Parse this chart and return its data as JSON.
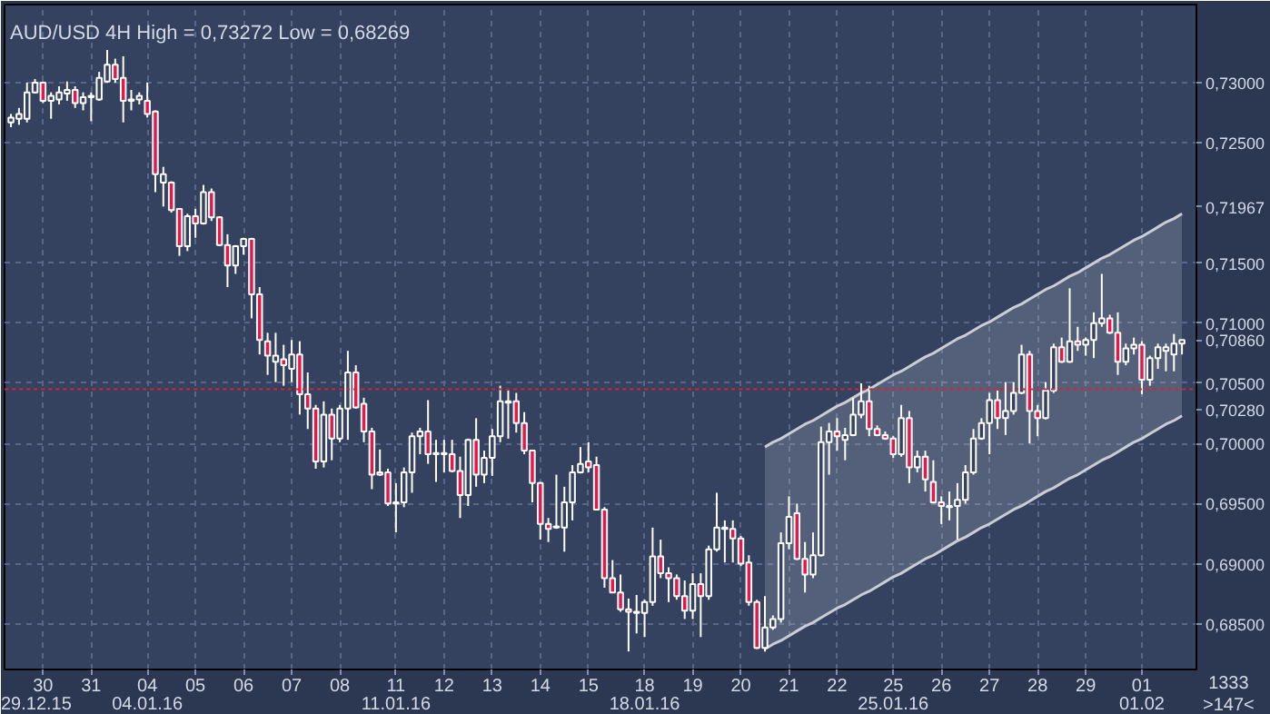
{
  "chart_data": {
    "type": "candlestick",
    "title": "AUD/USD 4H High = 0,73272 Low = 0,68269",
    "categories": [
      null,
      null,
      null,
      null,
      "30",
      null,
      null,
      null,
      null,
      null,
      "31",
      null,
      null,
      null,
      null,
      null,
      null,
      "04",
      null,
      null,
      null,
      null,
      null,
      "05",
      null,
      null,
      null,
      null,
      null,
      "06",
      null,
      null,
      null,
      null,
      null,
      "07",
      null,
      null,
      null,
      null,
      null,
      "08",
      null,
      null,
      null,
      null,
      null,
      null,
      "11",
      null,
      null,
      null,
      null,
      null,
      "12",
      null,
      null,
      null,
      null,
      null,
      "13",
      null,
      null,
      null,
      null,
      null,
      "14",
      null,
      null,
      null,
      null,
      null,
      "15",
      null,
      null,
      null,
      null,
      null,
      null,
      "18",
      null,
      null,
      null,
      null,
      null,
      "19",
      null,
      null,
      null,
      null,
      null,
      "20",
      null,
      null,
      null,
      null,
      null,
      "21",
      null,
      null,
      null,
      null,
      null,
      "22",
      null,
      null,
      null,
      null,
      null,
      null,
      "25",
      null,
      null,
      null,
      null,
      null,
      "26",
      null,
      null,
      null,
      null,
      null,
      "27",
      null,
      null,
      null,
      null,
      null,
      "28",
      null,
      null,
      null,
      null,
      null,
      "29",
      null,
      null,
      null,
      null,
      null,
      null,
      "01",
      null,
      null,
      null,
      null,
      null
    ],
    "ohlc": [
      [
        0.7267,
        0.7274,
        0.7263,
        0.7271
      ],
      [
        0.727,
        0.7279,
        0.7265,
        0.7274
      ],
      [
        0.727,
        0.73,
        0.7267,
        0.7292
      ],
      [
        0.7292,
        0.7303,
        0.7291,
        0.73
      ],
      [
        0.73,
        0.7301,
        0.7283,
        0.7285
      ],
      [
        0.7285,
        0.7292,
        0.727,
        0.7289
      ],
      [
        0.7286,
        0.7297,
        0.7282,
        0.7292
      ],
      [
        0.7291,
        0.7301,
        0.7285,
        0.7294
      ],
      [
        0.7294,
        0.7297,
        0.7279,
        0.7283
      ],
      [
        0.7283,
        0.7292,
        0.7277,
        0.7288
      ],
      [
        0.7288,
        0.7292,
        0.7268,
        0.7289
      ],
      [
        0.7286,
        0.7309,
        0.7285,
        0.7304
      ],
      [
        0.7301,
        0.73272,
        0.73,
        0.7315
      ],
      [
        0.7315,
        0.732,
        0.73,
        0.7303
      ],
      [
        0.7304,
        0.7322,
        0.7267,
        0.7285
      ],
      [
        0.7285,
        0.7294,
        0.7277,
        0.7286
      ],
      [
        0.7286,
        0.7292,
        0.7282,
        0.7289
      ],
      [
        0.7285,
        0.73,
        0.7271,
        0.7274
      ],
      [
        0.7276,
        0.7277,
        0.7209,
        0.7224
      ],
      [
        0.7217,
        0.723,
        0.7197,
        0.7224
      ],
      [
        0.7217,
        0.7218,
        0.7192,
        0.7194
      ],
      [
        0.7195,
        0.7195,
        0.7156,
        0.7164
      ],
      [
        0.7164,
        0.7191,
        0.716,
        0.7189
      ],
      [
        0.7189,
        0.7195,
        0.7171,
        0.7183
      ],
      [
        0.7183,
        0.7215,
        0.7182,
        0.7209
      ],
      [
        0.7209,
        0.7212,
        0.7185,
        0.7188
      ],
      [
        0.7188,
        0.7189,
        0.7164,
        0.7165
      ],
      [
        0.7165,
        0.7174,
        0.713,
        0.7148
      ],
      [
        0.7148,
        0.7165,
        0.7141,
        0.7164
      ],
      [
        0.7164,
        0.7171,
        0.7157,
        0.717
      ],
      [
        0.717,
        0.7171,
        0.7104,
        0.7124
      ],
      [
        0.7124,
        0.713,
        0.7074,
        0.7086
      ],
      [
        0.7085,
        0.7092,
        0.7057,
        0.7073
      ],
      [
        0.7068,
        0.7092,
        0.7051,
        0.7073
      ],
      [
        0.707,
        0.7082,
        0.7048,
        0.7065
      ],
      [
        0.7062,
        0.7086,
        0.7051,
        0.7074
      ],
      [
        0.7074,
        0.7085,
        0.7024,
        0.7041
      ],
      [
        0.7041,
        0.7059,
        0.7012,
        0.7029
      ],
      [
        0.7029,
        0.7032,
        0.6979,
        0.6985
      ],
      [
        0.6985,
        0.7035,
        0.698,
        0.7024
      ],
      [
        0.7024,
        0.7029,
        0.6986,
        0.7004
      ],
      [
        0.7004,
        0.7032,
        0.7001,
        0.7029
      ],
      [
        0.7029,
        0.7077,
        0.7003,
        0.7059
      ],
      [
        0.7059,
        0.7065,
        0.7029,
        0.703
      ],
      [
        0.7033,
        0.7038,
        0.7001,
        0.701
      ],
      [
        0.701,
        0.7013,
        0.6962,
        0.6974
      ],
      [
        0.6976,
        0.6995,
        0.6973,
        0.6974
      ],
      [
        0.6976,
        0.6979,
        0.6948,
        0.695
      ],
      [
        0.695,
        0.6967,
        0.6926,
        0.6951
      ],
      [
        0.6951,
        0.698,
        0.6947,
        0.6976
      ],
      [
        0.6976,
        0.7009,
        0.6959,
        0.7006
      ],
      [
        0.7006,
        0.7013,
        0.6991,
        0.701
      ],
      [
        0.701,
        0.7036,
        0.6983,
        0.6991
      ],
      [
        0.6991,
        0.7003,
        0.6968,
        0.6992
      ],
      [
        0.6991,
        0.7003,
        0.6976,
        0.6992
      ],
      [
        0.6991,
        0.7003,
        0.6976,
        0.6977
      ],
      [
        0.6977,
        0.6989,
        0.6938,
        0.6957
      ],
      [
        0.6957,
        0.7004,
        0.6948,
        0.7003
      ],
      [
        0.7003,
        0.7021,
        0.6964,
        0.6974
      ],
      [
        0.6974,
        0.6994,
        0.6967,
        0.6988
      ],
      [
        0.6988,
        0.7012,
        0.6973,
        0.7006
      ],
      [
        0.7006,
        0.7048,
        0.7001,
        0.7035
      ],
      [
        0.7034,
        0.7044,
        0.7004,
        0.7035
      ],
      [
        0.7035,
        0.7042,
        0.7009,
        0.7017
      ],
      [
        0.7017,
        0.7026,
        0.6991,
        0.6994
      ],
      [
        0.6994,
        0.6994,
        0.6951,
        0.6967
      ],
      [
        0.6967,
        0.6968,
        0.692,
        0.6933
      ],
      [
        0.6933,
        0.6938,
        0.6918,
        0.6929
      ],
      [
        0.693,
        0.6974,
        0.6929,
        0.6931
      ],
      [
        0.693,
        0.6964,
        0.691,
        0.6951
      ],
      [
        0.6951,
        0.6982,
        0.6936,
        0.6976
      ],
      [
        0.6976,
        0.6997,
        0.6975,
        0.6983
      ],
      [
        0.6985,
        0.7001,
        0.6976,
        0.698
      ],
      [
        0.6982,
        0.6989,
        0.6945,
        0.6945
      ],
      [
        0.6945,
        0.6947,
        0.688,
        0.6888
      ],
      [
        0.6888,
        0.6903,
        0.6876,
        0.6876
      ],
      [
        0.6876,
        0.6891,
        0.686,
        0.6862
      ],
      [
        0.6862,
        0.6871,
        0.6827,
        0.686
      ],
      [
        0.686,
        0.6874,
        0.6842,
        0.6859
      ],
      [
        0.6859,
        0.687,
        0.6839,
        0.6868
      ],
      [
        0.6868,
        0.693,
        0.6865,
        0.6906
      ],
      [
        0.6906,
        0.692,
        0.6888,
        0.6892
      ],
      [
        0.6892,
        0.6897,
        0.6868,
        0.6888
      ],
      [
        0.6888,
        0.6891,
        0.687,
        0.6873
      ],
      [
        0.6873,
        0.6886,
        0.6854,
        0.6861
      ],
      [
        0.6861,
        0.6892,
        0.6854,
        0.6883
      ],
      [
        0.6883,
        0.6892,
        0.6839,
        0.6873
      ],
      [
        0.6873,
        0.6915,
        0.687,
        0.6912
      ],
      [
        0.6912,
        0.6959,
        0.691,
        0.693
      ],
      [
        0.6929,
        0.6936,
        0.6901,
        0.693
      ],
      [
        0.6929,
        0.6936,
        0.6901,
        0.6921
      ],
      [
        0.6921,
        0.6923,
        0.6898,
        0.69
      ],
      [
        0.6901,
        0.6907,
        0.6865,
        0.6868
      ],
      [
        0.6868,
        0.687,
        0.6829,
        0.683
      ],
      [
        0.683,
        0.6873,
        0.68269,
        0.6847
      ],
      [
        0.6847,
        0.6857,
        0.6845,
        0.6854
      ],
      [
        0.6854,
        0.6926,
        0.6851,
        0.6917
      ],
      [
        0.6917,
        0.6956,
        0.6912,
        0.6939
      ],
      [
        0.6942,
        0.695,
        0.6903,
        0.6904
      ],
      [
        0.6904,
        0.6918,
        0.6876,
        0.6891
      ],
      [
        0.6891,
        0.6926,
        0.6888,
        0.6907
      ],
      [
        0.6907,
        0.7014,
        0.6906,
        0.7001
      ],
      [
        0.7001,
        0.7017,
        0.6974,
        0.701
      ],
      [
        0.701,
        0.7021,
        0.6994,
        0.7006
      ],
      [
        0.7003,
        0.7013,
        0.6986,
        0.7007
      ],
      [
        0.7007,
        0.7038,
        0.7006,
        0.7024
      ],
      [
        0.7024,
        0.705,
        0.7021,
        0.7035
      ],
      [
        0.7035,
        0.7048,
        0.7006,
        0.7012
      ],
      [
        0.7012,
        0.7015,
        0.7006,
        0.7007
      ],
      [
        0.7007,
        0.701,
        0.7003,
        0.7004
      ],
      [
        0.7004,
        0.7006,
        0.6988,
        0.6991
      ],
      [
        0.6991,
        0.7032,
        0.6989,
        0.7021
      ],
      [
        0.7021,
        0.7027,
        0.6967,
        0.698
      ],
      [
        0.698,
        0.6994,
        0.6976,
        0.6989
      ],
      [
        0.6989,
        0.6994,
        0.696,
        0.697
      ],
      [
        0.6968,
        0.6986,
        0.695,
        0.6951
      ],
      [
        0.6951,
        0.6956,
        0.6933,
        0.6948
      ],
      [
        0.6947,
        0.696,
        0.6936,
        0.6948
      ],
      [
        0.6948,
        0.6967,
        0.692,
        0.6953
      ],
      [
        0.6953,
        0.6982,
        0.695,
        0.6976
      ],
      [
        0.6976,
        0.7012,
        0.6974,
        0.7004
      ],
      [
        0.7004,
        0.7021,
        0.7003,
        0.7017
      ],
      [
        0.7017,
        0.7042,
        0.6991,
        0.7036
      ],
      [
        0.7036,
        0.7044,
        0.7012,
        0.7021
      ],
      [
        0.7021,
        0.7051,
        0.7007,
        0.7027
      ],
      [
        0.7027,
        0.7051,
        0.7024,
        0.7042
      ],
      [
        0.7042,
        0.7082,
        0.7041,
        0.7074
      ],
      [
        0.7074,
        0.7077,
        0.7,
        0.7027
      ],
      [
        0.7027,
        0.7032,
        0.7006,
        0.7021
      ],
      [
        0.7021,
        0.7051,
        0.702,
        0.7044
      ],
      [
        0.7044,
        0.7083,
        0.7042,
        0.708
      ],
      [
        0.708,
        0.7088,
        0.7067,
        0.7068
      ],
      [
        0.7068,
        0.7129,
        0.7067,
        0.7085
      ],
      [
        0.7085,
        0.7097,
        0.7077,
        0.7082
      ],
      [
        0.7082,
        0.7088,
        0.7073,
        0.7086
      ],
      [
        0.7086,
        0.7109,
        0.7071,
        0.71
      ],
      [
        0.71,
        0.7141,
        0.7097,
        0.7104
      ],
      [
        0.7104,
        0.7107,
        0.7091,
        0.7092
      ],
      [
        0.7092,
        0.7109,
        0.7057,
        0.7068
      ],
      [
        0.7068,
        0.7083,
        0.7065,
        0.7079
      ],
      [
        0.7079,
        0.7088,
        0.7074,
        0.7082
      ],
      [
        0.7082,
        0.7085,
        0.7041,
        0.7053
      ],
      [
        0.7053,
        0.7073,
        0.7048,
        0.7071
      ],
      [
        0.7071,
        0.7083,
        0.7062,
        0.708
      ],
      [
        0.7077,
        0.7083,
        0.706,
        0.708
      ],
      [
        0.7074,
        0.7091,
        0.706,
        0.7083
      ],
      [
        0.7083,
        0.7086,
        0.7074,
        0.7086
      ]
    ],
    "series": [
      {
        "type": "line",
        "color": "#c9cdd6",
        "values": [
          null,
          null,
          null,
          null,
          null,
          null,
          null,
          null,
          null,
          null,
          null,
          null,
          null,
          null,
          null,
          null,
          null,
          null,
          null,
          null,
          null,
          null,
          null,
          null,
          null,
          null,
          null,
          null,
          null,
          null,
          null,
          null,
          null,
          null,
          null,
          null,
          null,
          null,
          null,
          null,
          null,
          null,
          null,
          null,
          null,
          null,
          null,
          null,
          null,
          null,
          null,
          null,
          null,
          null,
          null,
          null,
          null,
          null,
          null,
          null,
          null,
          null,
          null,
          null,
          null,
          null,
          null,
          null,
          null,
          null,
          null,
          null,
          null,
          null,
          null,
          null,
          null,
          null,
          null,
          null,
          null,
          null,
          null,
          null,
          null,
          null,
          null,
          null,
          null,
          null,
          null,
          null,
          null,
          null,
          0.6997,
          0.7001,
          0.7004,
          0.7008,
          0.7012,
          0.7016,
          0.7019,
          0.7023,
          0.7027,
          0.7031,
          0.7034,
          0.7038,
          0.7042,
          0.7045,
          0.7049,
          0.7053,
          0.7057,
          0.706,
          0.7064,
          0.7068,
          0.7072,
          0.7075,
          0.7079,
          0.7083,
          0.7087,
          0.709,
          0.7094,
          0.7098,
          0.7101,
          0.7105,
          0.7109,
          0.7113,
          0.7116,
          0.712,
          0.7124,
          0.7128,
          0.7131,
          0.7135,
          0.7139,
          0.7142,
          0.7146,
          0.715,
          0.7154,
          0.7157,
          0.7161,
          0.7165,
          0.7169,
          0.7172,
          0.7176,
          0.718,
          0.7184,
          0.7187,
          0.7191
        ],
        "upper": [
          null,
          null,
          null,
          null,
          null,
          null,
          null,
          null,
          null,
          null,
          null,
          null,
          null,
          null,
          null,
          null,
          null,
          null,
          null,
          null,
          null,
          null,
          null,
          null,
          null,
          null,
          null,
          null,
          null,
          null,
          null,
          null,
          null,
          null,
          null,
          null,
          null,
          null,
          null,
          null,
          null,
          null,
          null,
          null,
          null,
          null,
          null,
          null,
          null,
          null,
          null,
          null,
          null,
          null,
          null,
          null,
          null,
          null,
          null,
          null,
          null,
          null,
          null,
          null,
          null,
          null,
          null,
          null,
          null,
          null,
          null,
          null,
          null,
          null,
          null,
          null,
          null,
          null,
          null,
          null,
          null,
          null,
          null,
          null,
          null,
          null,
          null,
          null,
          null,
          null,
          null,
          null,
          null,
          null,
          0.6997,
          0.7001,
          0.7004,
          0.7008,
          0.7012,
          0.7016,
          0.7019,
          0.7023,
          0.7027,
          0.7031,
          0.7034,
          0.7038,
          0.7042,
          0.7045,
          0.7049,
          0.7053,
          0.7057,
          0.706,
          0.7064,
          0.7068,
          0.7072,
          0.7075,
          0.7079,
          0.7083,
          0.7087,
          0.709,
          0.7094,
          0.7098,
          0.7101,
          0.7105,
          0.7109,
          0.7113,
          0.7116,
          0.712,
          0.7124,
          0.7128,
          0.7131,
          0.7135,
          0.7139,
          0.7142,
          0.7146,
          0.715,
          0.7154,
          0.7157,
          0.7161,
          0.7165,
          0.7169,
          0.7172,
          0.7176,
          0.718,
          0.7184,
          0.7187,
          0.7191
        ],
        "lower": [
          null,
          null,
          null,
          null,
          null,
          null,
          null,
          null,
          null,
          null,
          null,
          null,
          null,
          null,
          null,
          null,
          null,
          null,
          null,
          null,
          null,
          null,
          null,
          null,
          null,
          null,
          null,
          null,
          null,
          null,
          null,
          null,
          null,
          null,
          null,
          null,
          null,
          null,
          null,
          null,
          null,
          null,
          null,
          null,
          null,
          null,
          null,
          null,
          null,
          null,
          null,
          null,
          null,
          null,
          null,
          null,
          null,
          null,
          null,
          null,
          null,
          null,
          null,
          null,
          null,
          null,
          null,
          null,
          null,
          null,
          null,
          null,
          null,
          null,
          null,
          null,
          null,
          null,
          null,
          null,
          null,
          null,
          null,
          null,
          null,
          null,
          null,
          null,
          null,
          null,
          null,
          null,
          null,
          null,
          0.6829,
          0.6833,
          0.6836,
          0.684,
          0.6844,
          0.6848,
          0.6851,
          0.6855,
          0.6859,
          0.6863,
          0.6866,
          0.687,
          0.6874,
          0.6877,
          0.6881,
          0.6885,
          0.6889,
          0.6892,
          0.6896,
          0.69,
          0.6904,
          0.6907,
          0.6911,
          0.6915,
          0.6919,
          0.6922,
          0.6926,
          0.693,
          0.6933,
          0.6937,
          0.6941,
          0.6945,
          0.6948,
          0.6952,
          0.6956,
          0.696,
          0.6963,
          0.6967,
          0.6971,
          0.6974,
          0.6978,
          0.6982,
          0.6986,
          0.6989,
          0.6993,
          0.6997,
          0.7001,
          0.7004,
          0.7008,
          0.7012,
          0.7016,
          0.7019,
          0.7023
        ]
      },
      {
        "type": "line",
        "color": "#c9cdd6",
        "values": [
          null,
          null,
          null,
          null,
          null,
          null,
          null,
          null,
          null,
          null,
          null,
          null,
          null,
          null,
          null,
          null,
          null,
          null,
          null,
          null,
          null,
          null,
          null,
          null,
          null,
          null,
          null,
          null,
          null,
          null,
          null,
          null,
          null,
          null,
          null,
          null,
          null,
          null,
          null,
          null,
          null,
          null,
          null,
          null,
          null,
          null,
          null,
          null,
          null,
          null,
          null,
          null,
          null,
          null,
          null,
          null,
          null,
          null,
          null,
          null,
          null,
          null,
          null,
          null,
          null,
          null,
          null,
          null,
          null,
          null,
          null,
          null,
          null,
          null,
          null,
          null,
          null,
          null,
          null,
          null,
          null,
          null,
          null,
          null,
          null,
          null,
          null,
          null,
          null,
          null,
          null,
          null,
          null,
          null,
          0.6829,
          0.6833,
          0.6836,
          0.684,
          0.6844,
          0.6848,
          0.6851,
          0.6855,
          0.6859,
          0.6863,
          0.6866,
          0.687,
          0.6874,
          0.6877,
          0.6881,
          0.6885,
          0.6889,
          0.6892,
          0.6896,
          0.69,
          0.6904,
          0.6907,
          0.6911,
          0.6915,
          0.6919,
          0.6922,
          0.6926,
          0.693,
          0.6933,
          0.6937,
          0.6941,
          0.6945,
          0.6948,
          0.6952,
          0.6956,
          0.696,
          0.6963,
          0.6967,
          0.6971,
          0.6974,
          0.6978,
          0.6982,
          0.6986,
          0.6989,
          0.6993,
          0.6997,
          0.7001,
          0.7004,
          0.7008,
          0.7012,
          0.7016,
          0.7019,
          0.7023
        ]
      }
    ],
    "ylim": [
      0.6812,
      0.7365
    ],
    "yticks": [
      {
        "value": 0.685,
        "label": "0,68500"
      },
      {
        "value": 0.69,
        "label": "0,69000"
      },
      {
        "value": 0.695,
        "label": "0,69500"
      },
      {
        "value": 0.7,
        "label": "0,70000"
      },
      {
        "value": 0.7028,
        "label": "0,70280"
      },
      {
        "value": 0.705,
        "label": "0,70500"
      },
      {
        "value": 0.7086,
        "label": "0,70860"
      },
      {
        "value": 0.71,
        "label": "0,71000"
      },
      {
        "value": 0.715,
        "label": "0,71500"
      },
      {
        "value": 0.71967,
        "label": "0,71967"
      },
      {
        "value": 0.725,
        "label": "0,72500"
      },
      {
        "value": 0.73,
        "label": "0,73000"
      }
    ],
    "ref_lines": [
      {
        "axis": "y",
        "value": 0.7045,
        "color": "#e0202a",
        "line_style": "dotted"
      }
    ],
    "grid": true,
    "annotations": [
      "29.12.15",
      "04.01.16",
      "11.01.16",
      "18.01.16",
      "25.01.16",
      "01.02",
      "1333",
      ">147<"
    ]
  }
}
